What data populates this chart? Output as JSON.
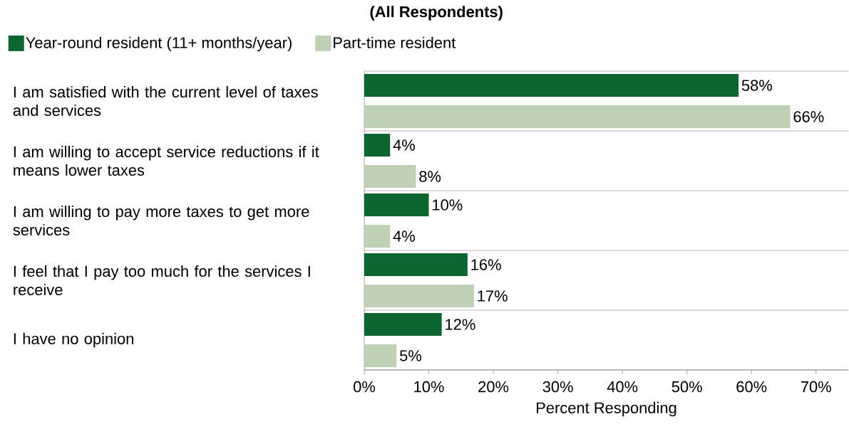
{
  "chart_data": {
    "type": "bar",
    "orientation": "horizontal",
    "title": "(All Respondents)",
    "xlabel": "Percent Responding",
    "categories": [
      "I am satisfied with the current level of taxes and services",
      "I am willing to accept service reductions if it means lower taxes",
      "I am willing to pay more taxes to get more services",
      "I feel that I pay too much for the services I receive",
      "I have no opinion"
    ],
    "series": [
      {
        "name": "Year-round resident (11+ months/year)",
        "color": "#0b6630",
        "values": [
          58,
          4,
          10,
          16,
          12
        ],
        "value_labels": [
          "58%",
          "4%",
          "10%",
          "16%",
          "12%"
        ]
      },
      {
        "name": "Part-time resident",
        "color": "#bfd1b5",
        "values": [
          66,
          8,
          4,
          17,
          5
        ],
        "value_labels": [
          "66%",
          "8%",
          "4%",
          "17%",
          "5%"
        ]
      }
    ],
    "xlim": [
      0,
      75
    ],
    "xticks": [
      {
        "value": 0,
        "label": "0%"
      },
      {
        "value": 10,
        "label": "10%"
      },
      {
        "value": 20,
        "label": "20%"
      },
      {
        "value": 30,
        "label": "30%"
      },
      {
        "value": 40,
        "label": "40%"
      },
      {
        "value": 50,
        "label": "50%"
      },
      {
        "value": 60,
        "label": "60%"
      },
      {
        "value": 70,
        "label": "70%"
      }
    ],
    "grid": "y",
    "legend": "top left"
  }
}
